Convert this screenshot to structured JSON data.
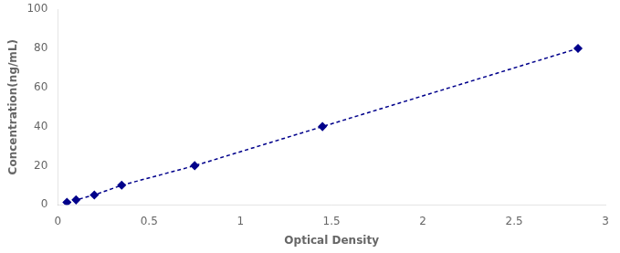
{
  "chart_data": {
    "type": "line",
    "x": [
      0.05,
      0.1,
      0.2,
      0.35,
      0.75,
      1.45,
      2.85
    ],
    "values": [
      1.25,
      2.5,
      5.0,
      10.0,
      20.0,
      40.0,
      80.0
    ],
    "color": "#00008B",
    "marker": "diamond",
    "line_style": "dashed",
    "xlabel": "Optical Density",
    "ylabel": "Concentration(ng/mL)",
    "xlim": [
      0,
      3.0
    ],
    "ylim": [
      0,
      100
    ],
    "xticks": [
      0,
      0.5,
      1,
      1.5,
      2,
      2.5,
      3
    ],
    "yticks": [
      0,
      20,
      40,
      60,
      80,
      100
    ],
    "grid": false
  }
}
